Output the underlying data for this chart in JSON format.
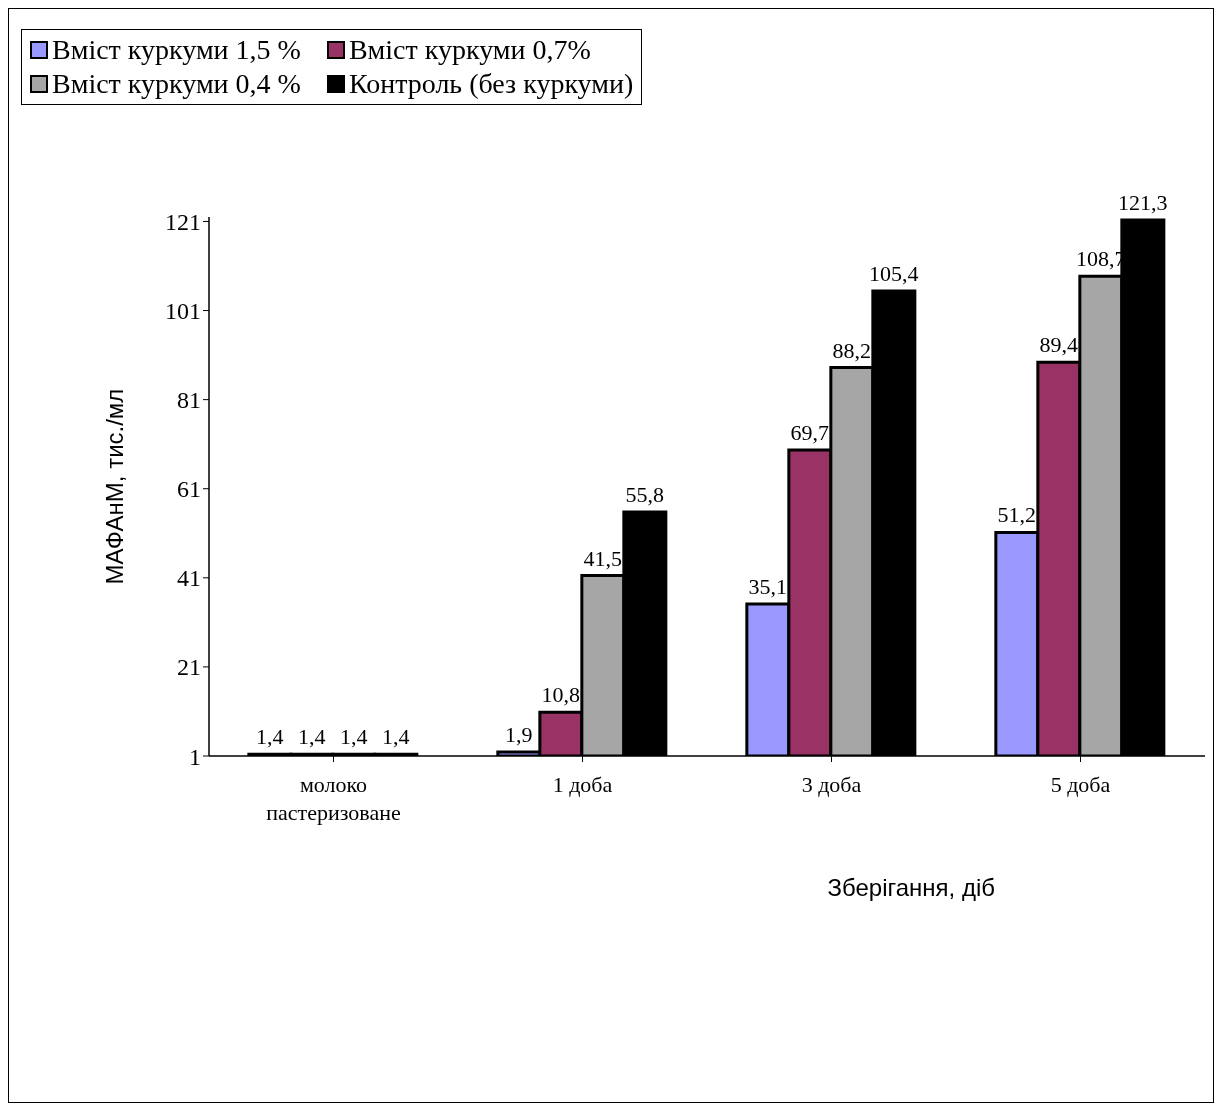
{
  "chart_data": {
    "type": "bar",
    "xlabel": "Зберігання, діб",
    "ylabel": "МАФАнМ, тис./мл",
    "categories": [
      "молоко пастеризоване",
      "1 доба",
      "3 доба",
      "5 доба"
    ],
    "series": [
      {
        "name": "Вміст куркуми 1,5 %",
        "color": "#9999ff",
        "values": [
          1.4,
          1.9,
          35.1,
          51.2
        ],
        "value_labels": [
          "1,4",
          "1,9",
          "35,1",
          "51,2"
        ]
      },
      {
        "name": "Вміст куркуми 0,7%",
        "color": "#993366",
        "values": [
          1.4,
          10.8,
          69.7,
          89.4
        ],
        "value_labels": [
          "1,4",
          "10,8",
          "69,7",
          "89,4"
        ]
      },
      {
        "name": "Вміст куркуми 0,4 %",
        "color": "#a6a6a6",
        "values": [
          1.4,
          41.5,
          88.2,
          108.7
        ],
        "value_labels": [
          "1,4",
          "41,5",
          "88,2",
          "108,7"
        ]
      },
      {
        "name": "Контроль (без куркуми)",
        "color": "#000000",
        "values": [
          1.4,
          55.8,
          105.4,
          121.3
        ],
        "value_labels": [
          "1,4",
          "55,8",
          "105,4",
          "121,3"
        ]
      }
    ],
    "ylim": [
      1,
      122
    ],
    "yticks": [
      1,
      21,
      41,
      61,
      81,
      101,
      121
    ],
    "legend": "top left"
  }
}
